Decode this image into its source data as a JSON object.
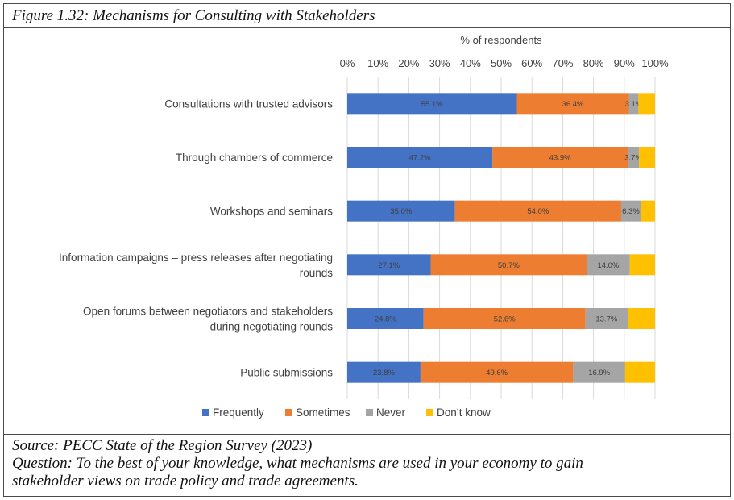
{
  "figure": {
    "title": "Figure 1.32: Mechanisms for Consulting with Stakeholders"
  },
  "footer": {
    "source": "Source: PECC State of the Region Survey (2023)",
    "question_line1": "Question: To the best of your knowledge, what mechanisms are used in your economy to gain",
    "question_line2": "stakeholder views on trade policy and trade agreements."
  },
  "chart_data": {
    "type": "bar",
    "orientation": "horizontal",
    "stacked": true,
    "xlabel": "% of respondents",
    "xlim": [
      0,
      100
    ],
    "x_ticks": [
      "0%",
      "10%",
      "20%",
      "30%",
      "40%",
      "50%",
      "60%",
      "70%",
      "80%",
      "90%",
      "100%"
    ],
    "grid": true,
    "legend_position": "bottom",
    "categories": [
      [
        "Consultations with trusted advisors"
      ],
      [
        "Through chambers of commerce"
      ],
      [
        "Workshops and seminars"
      ],
      [
        "Information campaigns – press releases after negotiating",
        "rounds"
      ],
      [
        "Open forums between negotiators and stakeholders",
        "during negotiating rounds"
      ],
      [
        "Public submissions"
      ]
    ],
    "series": [
      {
        "name": "Frequently",
        "color": "#4472C4",
        "values": [
          55.1,
          47.2,
          35.0,
          27.1,
          24.8,
          23.8
        ],
        "labels": [
          "55.1%",
          "47.2%",
          "35.0%",
          "27.1%",
          "24.8%",
          "23.8%"
        ]
      },
      {
        "name": "Sometimes",
        "color": "#ED7D31",
        "values": [
          36.4,
          43.9,
          54.0,
          50.7,
          52.6,
          49.6
        ],
        "labels": [
          "36.4%",
          "43.9%",
          "54.0%",
          "50.7%",
          "52.6%",
          "49.6%"
        ]
      },
      {
        "name": "Never",
        "color": "#A5A5A5",
        "values": [
          3.1,
          3.7,
          6.3,
          14.0,
          13.7,
          16.9
        ],
        "labels": [
          "3.1%",
          "3.7%",
          "6.3%",
          "14.0%",
          "13.7%",
          "16.9%"
        ]
      },
      {
        "name": "Don’t know",
        "color": "#FFC000",
        "values": [
          5.4,
          5.2,
          4.7,
          8.2,
          8.9,
          9.7
        ],
        "labels": [
          "",
          "",
          "",
          "",
          "",
          ""
        ]
      }
    ]
  }
}
